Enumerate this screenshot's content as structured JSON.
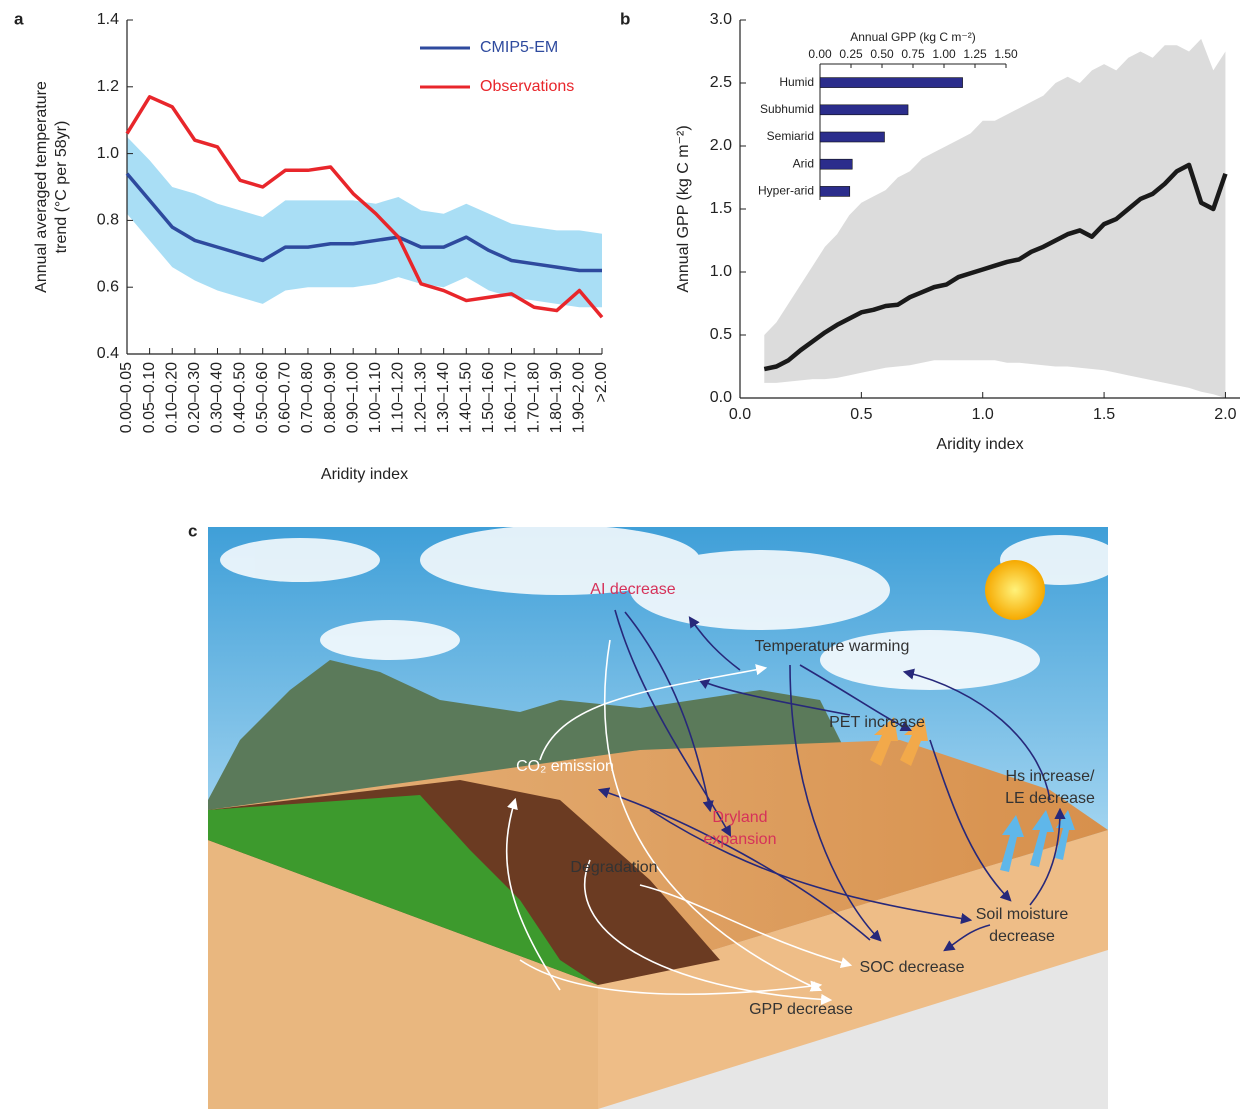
{
  "chart_data": [
    {
      "type": "line",
      "panel": "a",
      "x_label": "Aridity index",
      "y_label": [
        "Annual averaged temperature",
        "trend (°C per 58yr)"
      ],
      "categories": [
        "0.00–0.05",
        "0.05–0.10",
        "0.10–0.20",
        "0.20–0.30",
        "0.30–0.40",
        "0.40–0.50",
        "0.50–0.60",
        "0.60–0.70",
        "0.70–0.80",
        "0.80–0.90",
        "0.90–1.00",
        "1.00–1.10",
        "1.10–1.20",
        "1.20–1.30",
        "1.30–1.40",
        "1.40–1.50",
        "1.50–1.60",
        "1.60–1.70",
        "1.70–1.80",
        "1.80–1.90",
        "1.90–2.00",
        ">2.00"
      ],
      "band": {
        "color": "#a9def5",
        "upper": [
          1.05,
          0.98,
          0.9,
          0.88,
          0.85,
          0.83,
          0.81,
          0.86,
          0.86,
          0.86,
          0.86,
          0.85,
          0.87,
          0.83,
          0.82,
          0.85,
          0.82,
          0.79,
          0.78,
          0.77,
          0.77,
          0.76
        ],
        "lower": [
          0.82,
          0.74,
          0.66,
          0.62,
          0.59,
          0.57,
          0.55,
          0.59,
          0.6,
          0.6,
          0.6,
          0.61,
          0.63,
          0.61,
          0.6,
          0.63,
          0.59,
          0.57,
          0.56,
          0.55,
          0.54,
          0.54
        ]
      },
      "series": [
        {
          "name": "CMIP5-EM",
          "color": "#2e4a9e",
          "values": [
            0.94,
            0.86,
            0.78,
            0.74,
            0.72,
            0.7,
            0.68,
            0.72,
            0.72,
            0.73,
            0.73,
            0.74,
            0.75,
            0.72,
            0.72,
            0.75,
            0.71,
            0.68,
            0.67,
            0.66,
            0.65,
            0.65
          ]
        },
        {
          "name": "Observations",
          "color": "#e8262b",
          "values": [
            1.06,
            1.17,
            1.14,
            1.04,
            1.02,
            0.92,
            0.9,
            0.95,
            0.95,
            0.96,
            0.88,
            0.82,
            0.75,
            0.61,
            0.59,
            0.56,
            0.57,
            0.58,
            0.54,
            0.53,
            0.59,
            0.51
          ]
        }
      ],
      "ylim": [
        0.4,
        1.4
      ],
      "yticks": [
        0.4,
        0.6,
        0.8,
        {
          "value": 1,
          "label": "1.0"
        },
        1.2,
        1.4
      ],
      "legend": "top-right"
    },
    {
      "type": "line",
      "panel": "b",
      "x_label": "Aridity index",
      "y_label": [
        "Annual GPP (kg  C m⁻²)"
      ],
      "x": [
        0.1,
        0.15,
        0.2,
        0.25,
        0.3,
        0.35,
        0.4,
        0.45,
        0.5,
        0.55,
        0.6,
        0.65,
        0.7,
        0.75,
        0.8,
        0.85,
        0.9,
        0.95,
        1.0,
        1.05,
        1.1,
        1.15,
        1.2,
        1.25,
        1.3,
        1.35,
        1.4,
        1.45,
        1.5,
        1.55,
        1.6,
        1.65,
        1.7,
        1.75,
        1.8,
        1.85,
        1.9,
        1.95,
        2.0
      ],
      "band": {
        "color": "#dcdcdc",
        "upper": [
          0.5,
          0.6,
          0.75,
          0.9,
          1.05,
          1.2,
          1.3,
          1.45,
          1.55,
          1.6,
          1.65,
          1.75,
          1.8,
          1.9,
          1.95,
          2.0,
          2.05,
          2.1,
          2.2,
          2.2,
          2.25,
          2.3,
          2.35,
          2.4,
          2.5,
          2.55,
          2.5,
          2.6,
          2.65,
          2.6,
          2.7,
          2.75,
          2.7,
          2.8,
          2.8,
          2.75,
          2.85,
          2.6,
          2.75
        ],
        "lower": [
          0.12,
          0.12,
          0.13,
          0.14,
          0.15,
          0.15,
          0.16,
          0.18,
          0.2,
          0.22,
          0.24,
          0.25,
          0.26,
          0.28,
          0.3,
          0.3,
          0.3,
          0.3,
          0.3,
          0.3,
          0.28,
          0.28,
          0.27,
          0.26,
          0.25,
          0.25,
          0.24,
          0.23,
          0.22,
          0.2,
          0.18,
          0.16,
          0.14,
          0.12,
          0.1,
          0.08,
          0.05,
          0.03,
          0.0
        ]
      },
      "series": [
        {
          "color": "#1a1a1a",
          "values": [
            0.23,
            0.25,
            0.3,
            0.38,
            0.45,
            0.52,
            0.58,
            0.63,
            0.68,
            0.7,
            0.73,
            0.74,
            0.8,
            0.84,
            0.88,
            0.9,
            0.96,
            0.99,
            1.02,
            1.05,
            1.08,
            1.1,
            1.16,
            1.2,
            1.25,
            1.3,
            1.33,
            1.28,
            1.38,
            1.42,
            1.5,
            1.58,
            1.62,
            1.7,
            1.8,
            1.85,
            1.55,
            1.5,
            1.78
          ]
        }
      ],
      "xlim": [
        0,
        2.06
      ],
      "xticks": [
        {
          "value": 0,
          "label": "0.0"
        },
        0.5,
        {
          "value": 1,
          "label": "1.0"
        },
        1.5,
        {
          "value": 2,
          "label": "2.0"
        }
      ],
      "ylim": [
        0,
        3
      ],
      "yticks": [
        {
          "value": 0,
          "label": "0.0"
        },
        0.5,
        {
          "value": 1,
          "label": "1.0"
        },
        1.5,
        {
          "value": 2,
          "label": "2.0"
        },
        2.5,
        {
          "value": 3,
          "label": "3.0"
        }
      ]
    },
    {
      "type": "bar",
      "orientation": "horizontal",
      "title": "Annual GPP (kg C m⁻²)",
      "categories": [
        "Humid",
        "Subhumid",
        "Semiarid",
        "Arid",
        "Hyper-arid"
      ],
      "values": [
        1.15,
        0.71,
        0.52,
        0.26,
        0.24
      ],
      "color": "#2b2d8c",
      "xlim": [
        0,
        1.5
      ],
      "xticks": [
        {
          "value": 0,
          "label": "0.00"
        },
        0.25,
        {
          "value": 0.5,
          "label": "0.50"
        },
        0.75,
        {
          "value": 1,
          "label": "1.00"
        },
        1.25,
        {
          "value": 1.5,
          "label": "1.50"
        }
      ]
    }
  ],
  "diagram": {
    "panel": "c",
    "nodes": [
      {
        "lines": [
          "AI decrease"
        ],
        "color": "#d6325a"
      },
      {
        "lines": [
          "Temperature warming"
        ],
        "color": "#333333"
      },
      {
        "lines": [
          "PET increase"
        ],
        "color": "#333333"
      },
      {
        "lines": [
          "CO₂ emission"
        ],
        "color": "#ffffff"
      },
      {
        "lines": [
          "Hs increase/",
          "LE decrease"
        ],
        "color": "#333333"
      },
      {
        "lines": [
          "Dryland",
          "expansion"
        ],
        "color": "#d6325a"
      },
      {
        "lines": [
          "Degradation"
        ],
        "color": "#333333"
      },
      {
        "lines": [
          "Soil moisture",
          "decrease"
        ],
        "color": "#333333"
      },
      {
        "lines": [
          "SOC decrease"
        ],
        "color": "#333333"
      },
      {
        "lines": [
          "GPP decrease"
        ],
        "color": "#333333"
      }
    ]
  }
}
